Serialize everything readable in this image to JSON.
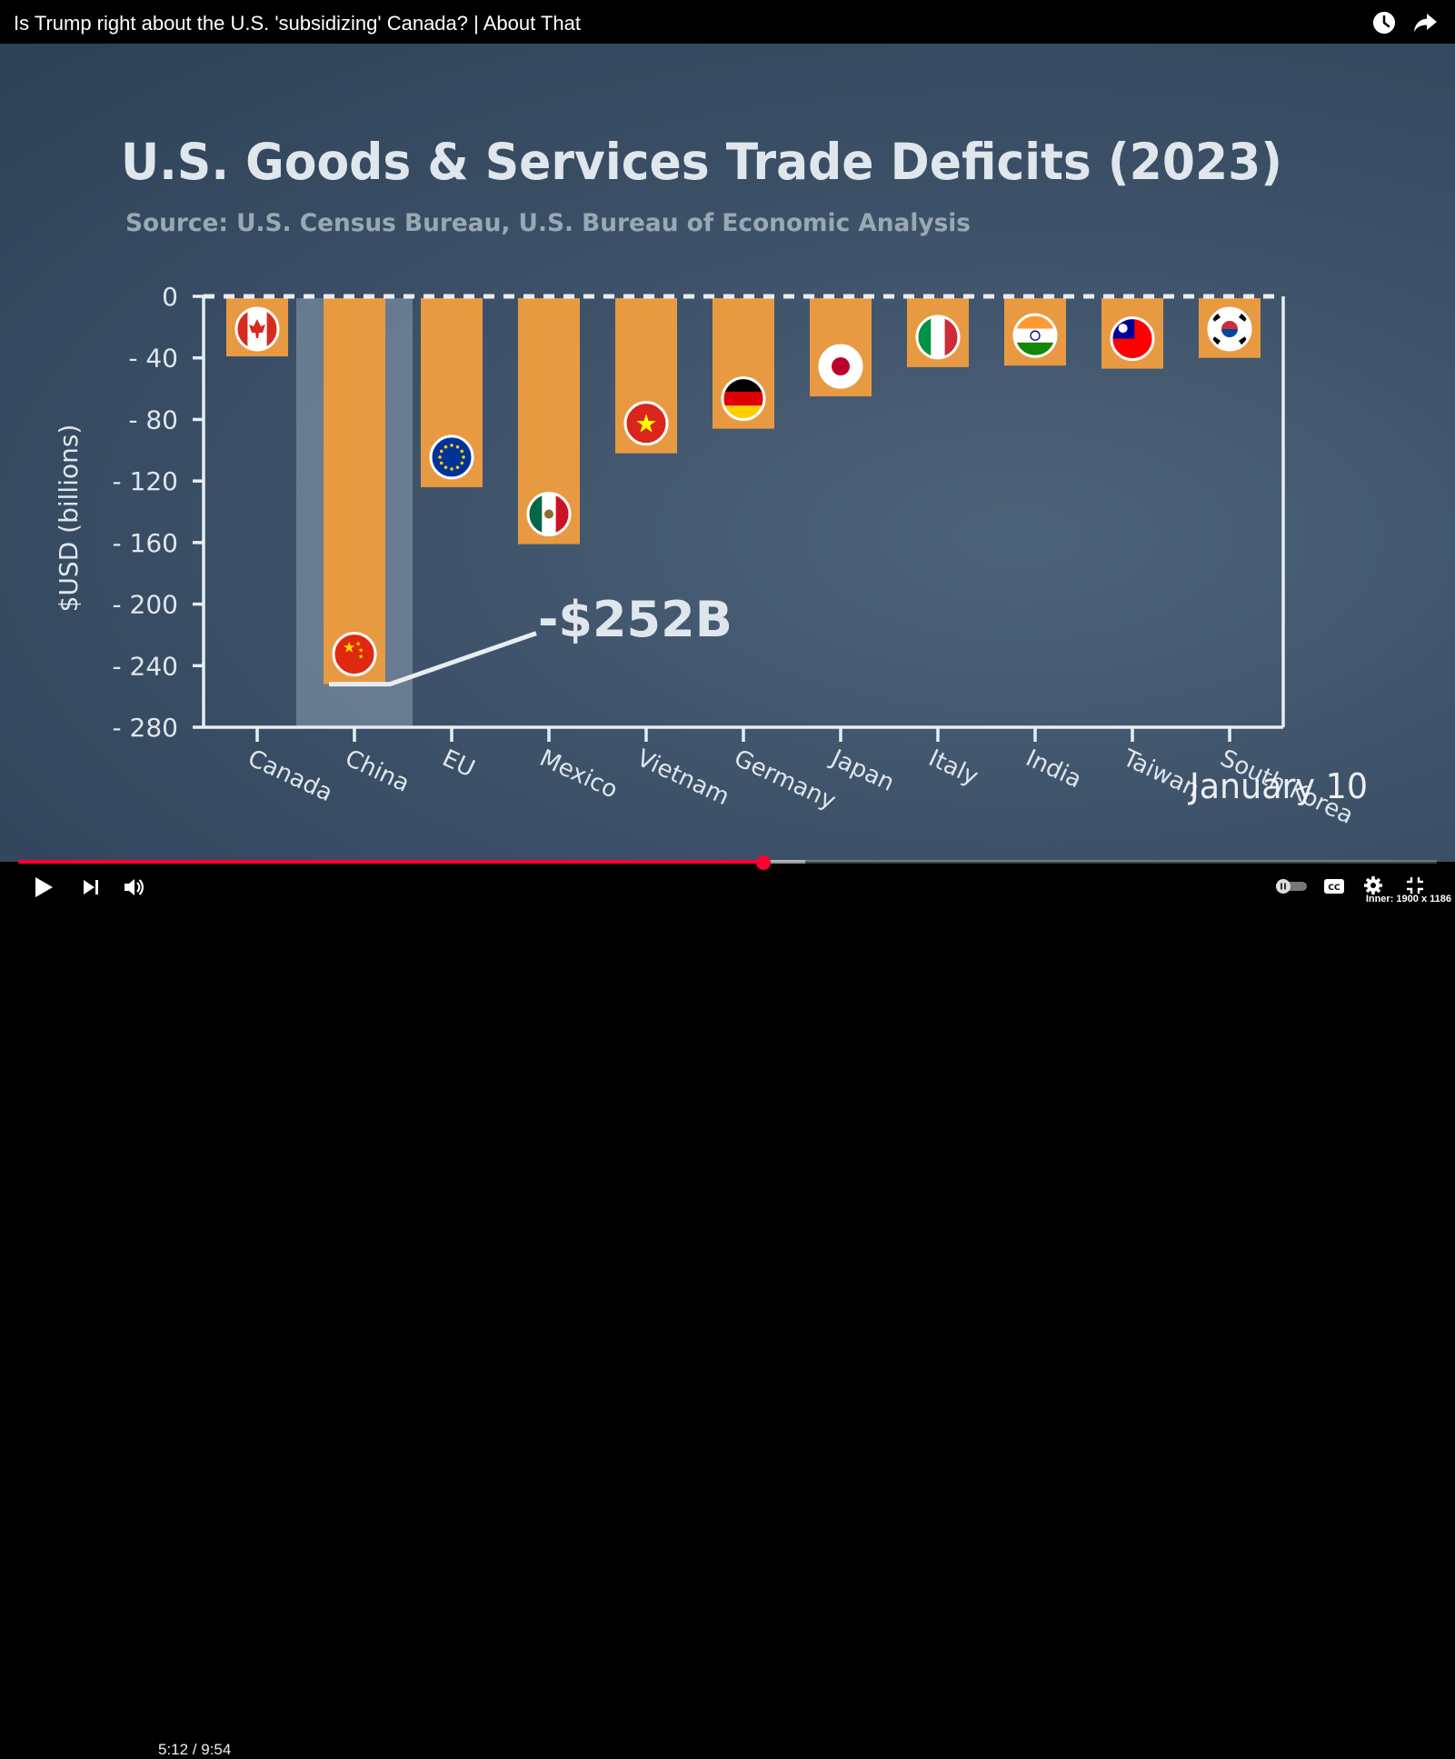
{
  "window": {
    "title": "Is Trump right about the U.S. 'subsidizing' Canada? | About That",
    "inner_size_label": "Inner: 1900 x 1186"
  },
  "icons": {
    "watch_later": "clock-icon",
    "share": "share-arrow-icon",
    "play": "play-icon",
    "next": "skip-next-icon",
    "volume": "volume-icon",
    "autoplay": "autoplay-toggle-icon",
    "captions": "cc-icon",
    "settings": "gear-icon",
    "fullscreen": "exit-fullscreen-icon"
  },
  "player": {
    "time_display": "5:12 / 9:54",
    "progress_played": 0.525,
    "progress_buffered": 0.555
  },
  "colors": {
    "bar": "#e89a43",
    "highlight": "#8e9fb0",
    "text": "#dfe6ec",
    "subtitle": "#9aa8b5",
    "progress": "#ff0033"
  },
  "chart_data": {
    "type": "bar",
    "title": "U.S. Goods & Services Trade Deficits (2023)",
    "subtitle": "Source: U.S. Census Bureau, U.S. Bureau of Economic Analysis",
    "ylabel": "$USD (billions)",
    "ylim": [
      -280,
      0
    ],
    "yticks": [
      0,
      -40,
      -80,
      -120,
      -160,
      -200,
      -240,
      -280
    ],
    "ytick_labels": [
      "0",
      "- 40",
      "- 80",
      "- 120",
      "- 160",
      "- 200",
      "- 240",
      "- 280"
    ],
    "categories": [
      "Canada",
      "China",
      "EU",
      "Mexico",
      "Vietnam",
      "Germany",
      "Japan",
      "Italy",
      "India",
      "Taiwan",
      "South Korea"
    ],
    "values": [
      -39,
      -252,
      -124,
      -161,
      -102,
      -86,
      -65,
      -46,
      -45,
      -47,
      -40
    ],
    "flags": [
      "canada-flag-icon",
      "china-flag-icon",
      "eu-flag-icon",
      "mexico-flag-icon",
      "vietnam-flag-icon",
      "germany-flag-icon",
      "japan-flag-icon",
      "italy-flag-icon",
      "india-flag-icon",
      "taiwan-flag-icon",
      "south-korea-flag-icon"
    ],
    "highlighted_category": "China",
    "annotation": "-$252B",
    "overlay_text": "January 10",
    "grid": false
  }
}
